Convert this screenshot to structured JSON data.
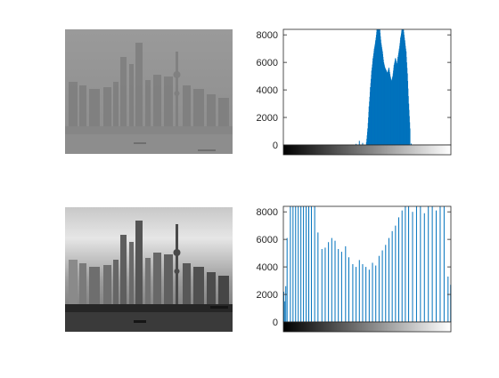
{
  "colors": {
    "bar": "#0072BD",
    "axis": "#262626",
    "background": "#ffffff"
  },
  "chart_data": [
    {
      "type": "image",
      "description_key": "hazy-skyline",
      "tone": "low-contrast"
    },
    {
      "type": "bar",
      "kind": "histogram",
      "xlim": [
        0,
        255
      ],
      "ylim": [
        0,
        8400
      ],
      "yticks": [
        "8000",
        "6000",
        "4000",
        "2000",
        "0"
      ],
      "ytick_values": [
        8000,
        6000,
        4000,
        2000,
        0
      ],
      "colorbar": "grayscale",
      "bins": [
        [
          110,
          80
        ],
        [
          115,
          300
        ],
        [
          120,
          150
        ],
        [
          126,
          200
        ],
        [
          128,
          1200
        ],
        [
          130,
          2800
        ],
        [
          132,
          4200
        ],
        [
          134,
          5400
        ],
        [
          136,
          6300
        ],
        [
          138,
          7000
        ],
        [
          140,
          7600
        ],
        [
          142,
          8400
        ],
        [
          144,
          8400
        ],
        [
          146,
          8400
        ],
        [
          148,
          7400
        ],
        [
          150,
          6800
        ],
        [
          152,
          6000
        ],
        [
          154,
          5600
        ],
        [
          156,
          5400
        ],
        [
          158,
          5200
        ],
        [
          160,
          5600
        ],
        [
          162,
          5000
        ],
        [
          164,
          4600
        ],
        [
          166,
          5000
        ],
        [
          168,
          5800
        ],
        [
          170,
          6300
        ],
        [
          172,
          5800
        ],
        [
          174,
          6400
        ],
        [
          176,
          7000
        ],
        [
          178,
          7800
        ],
        [
          180,
          8400
        ],
        [
          182,
          8400
        ],
        [
          184,
          7600
        ],
        [
          186,
          6800
        ],
        [
          188,
          5200
        ],
        [
          190,
          3000
        ],
        [
          192,
          1200
        ],
        [
          194,
          100
        ]
      ]
    },
    {
      "type": "image",
      "description_key": "equalized-skyline",
      "tone": "high-contrast"
    },
    {
      "type": "bar",
      "kind": "histogram",
      "xlim": [
        0,
        255
      ],
      "ylim": [
        0,
        8400
      ],
      "yticks": [
        "8000",
        "6000",
        "4000",
        "2000",
        "0"
      ],
      "ytick_values": [
        8000,
        6000,
        4000,
        2000,
        0
      ],
      "colorbar": "grayscale",
      "bins": [
        [
          0,
          2200
        ],
        [
          1,
          1500
        ],
        [
          3,
          2600
        ],
        [
          5,
          6100
        ],
        [
          10,
          8400
        ],
        [
          14,
          8400
        ],
        [
          18,
          8400
        ],
        [
          22,
          8400
        ],
        [
          26,
          8400
        ],
        [
          30,
          8400
        ],
        [
          34,
          8400
        ],
        [
          38,
          8400
        ],
        [
          42,
          8400
        ],
        [
          47,
          8400
        ],
        [
          52,
          6500
        ],
        [
          58,
          5300
        ],
        [
          63,
          5400
        ],
        [
          68,
          5800
        ],
        [
          73,
          6100
        ],
        [
          78,
          5900
        ],
        [
          83,
          5300
        ],
        [
          88,
          5100
        ],
        [
          94,
          5500
        ],
        [
          99,
          4700
        ],
        [
          105,
          4200
        ],
        [
          110,
          4000
        ],
        [
          115,
          4500
        ],
        [
          120,
          4200
        ],
        [
          125,
          4000
        ],
        [
          130,
          3800
        ],
        [
          135,
          4300
        ],
        [
          140,
          4100
        ],
        [
          145,
          4800
        ],
        [
          150,
          5200
        ],
        [
          155,
          5600
        ],
        [
          160,
          6100
        ],
        [
          165,
          6600
        ],
        [
          170,
          7000
        ],
        [
          175,
          7600
        ],
        [
          180,
          8100
        ],
        [
          185,
          8400
        ],
        [
          190,
          8400
        ],
        [
          196,
          8000
        ],
        [
          202,
          8400
        ],
        [
          208,
          8400
        ],
        [
          214,
          7900
        ],
        [
          220,
          8400
        ],
        [
          226,
          8400
        ],
        [
          232,
          8100
        ],
        [
          238,
          8400
        ],
        [
          244,
          8400
        ],
        [
          250,
          3300
        ],
        [
          254,
          2700
        ]
      ]
    }
  ]
}
